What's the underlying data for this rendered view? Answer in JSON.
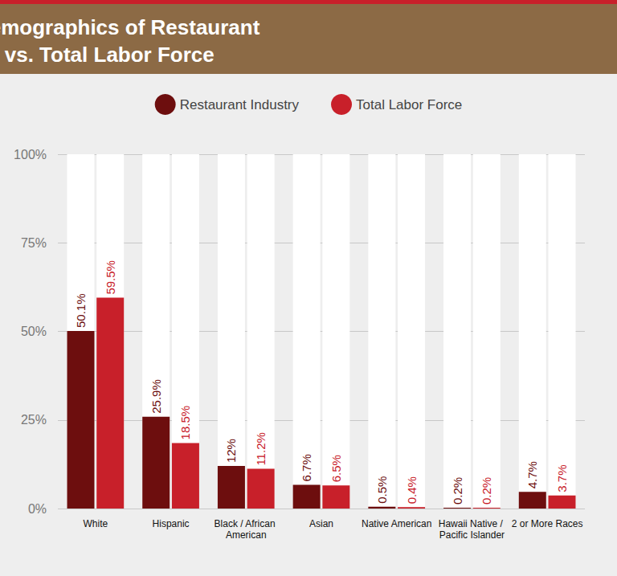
{
  "chart_data": {
    "type": "bar",
    "title": "Racial/Ethnic Demographics of Restaurant Employees vs. Total Labor Force",
    "categories": [
      "White",
      "Hispanic",
      "Black / African American",
      "Asian",
      "Native American",
      "Hawaii Native / Pacific Islander",
      "2 or More Races"
    ],
    "series": [
      {
        "name": "Restaurant Industry",
        "color": "#6d0e0e",
        "values": [
          50.1,
          25.9,
          12,
          6.7,
          0.5,
          0.2,
          4.7
        ],
        "value_labels": [
          "50.1%",
          "25.9%",
          "12%",
          "6.7%",
          "0.5%",
          "0.2%",
          "4.7%"
        ]
      },
      {
        "name": "Total Labor Force",
        "color": "#c8202a",
        "values": [
          59.5,
          18.5,
          11.2,
          6.5,
          0.4,
          0.2,
          3.7
        ],
        "value_labels": [
          "59.5%",
          "18.5%",
          "11.2%",
          "6.5%",
          "0.4%",
          "0.2%",
          "3.7%"
        ]
      }
    ],
    "ylim": [
      0,
      100
    ],
    "yticks": [
      {
        "value": 0,
        "label": "0%"
      },
      {
        "value": 25,
        "label": "25%"
      },
      {
        "value": 50,
        "label": "50%"
      },
      {
        "value": 75,
        "label": "75%"
      },
      {
        "value": 100,
        "label": "100%"
      }
    ],
    "grid": true,
    "legend": "top",
    "data_labels": true
  }
}
